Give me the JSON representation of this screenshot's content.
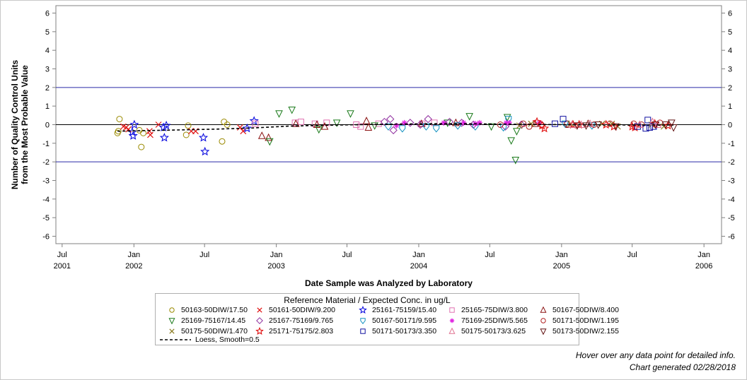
{
  "chart_data": {
    "type": "scatter",
    "ylabel_lines": [
      "Number of Quality Control Units",
      "from the Most Probable Value"
    ],
    "xlabel": "Date Sample was Analyzed by Laboratory",
    "ylim": [
      -6.4,
      6.4
    ],
    "yticks": [
      -6,
      -5,
      -4,
      -3,
      -2,
      -1,
      0,
      1,
      2,
      3,
      4,
      5,
      6
    ],
    "ytick_labels": [
      "-6",
      "-5",
      "-4",
      "-3",
      "-2",
      "-1",
      "0",
      "1",
      "2",
      "3",
      "4",
      "5",
      "6"
    ],
    "xlim": [
      "2001-06-15",
      "2006-02-15"
    ],
    "xticks": [
      {
        "date": "2001-07-01",
        "line1": "Jul",
        "line2": "2001"
      },
      {
        "date": "2002-01-01",
        "line1": "Jan",
        "line2": "2002"
      },
      {
        "date": "2002-07-01",
        "line1": "Jul",
        "line2": ""
      },
      {
        "date": "2003-01-01",
        "line1": "Jan",
        "line2": "2003"
      },
      {
        "date": "2003-07-01",
        "line1": "Jul",
        "line2": ""
      },
      {
        "date": "2004-01-01",
        "line1": "Jan",
        "line2": "2004"
      },
      {
        "date": "2004-07-01",
        "line1": "Jul",
        "line2": ""
      },
      {
        "date": "2005-01-01",
        "line1": "Jan",
        "line2": "2005"
      },
      {
        "date": "2005-07-01",
        "line1": "Jul",
        "line2": ""
      },
      {
        "date": "2006-01-01",
        "line1": "Jan",
        "line2": "2006"
      }
    ],
    "reference_lines": [
      {
        "y": 2,
        "color": "#2a2aa8"
      },
      {
        "y": 0,
        "color": "#000000"
      },
      {
        "y": -2,
        "color": "#2a2aa8"
      }
    ],
    "grid": false,
    "legend_position": "bottom",
    "legend_title": "Reference Material / Expected Conc. in ug/L",
    "series": [
      {
        "name": "50163-50DIW/17.50",
        "marker": "circle",
        "color": "#9a8a00",
        "points": [
          [
            "2001-11-20",
            -0.45
          ],
          [
            "2001-11-25",
            0.3
          ],
          [
            "2001-11-22",
            -0.35
          ],
          [
            "2002-01-15",
            -0.3
          ],
          [
            "2002-01-20",
            -1.2
          ],
          [
            "2002-01-25",
            -0.45
          ],
          [
            "2002-05-15",
            -0.55
          ],
          [
            "2002-05-20",
            -0.05
          ],
          [
            "2002-08-20",
            0.15
          ],
          [
            "2002-08-15",
            -0.9
          ],
          [
            "2002-08-28",
            0.0
          ]
        ]
      },
      {
        "name": "50161-50DIW/9.200",
        "marker": "x",
        "color": "#e01010",
        "points": [
          [
            "2001-12-05",
            -0.1
          ],
          [
            "2001-12-12",
            -0.15
          ],
          [
            "2001-12-18",
            -0.25
          ],
          [
            "2002-02-12",
            -0.55
          ],
          [
            "2002-02-10",
            -0.35
          ],
          [
            "2002-03-05",
            0.0
          ],
          [
            "2002-05-28",
            -0.35
          ],
          [
            "2002-06-08",
            -0.35
          ],
          [
            "2002-09-30",
            -0.15
          ],
          [
            "2002-10-08",
            -0.35
          ]
        ]
      },
      {
        "name": "25161-75159/15.40",
        "marker": "star",
        "color": "#1010e0",
        "points": [
          [
            "2001-12-28",
            -0.4
          ],
          [
            "2002-01-02",
            0.0
          ],
          [
            "2001-12-30",
            -0.6
          ],
          [
            "2002-03-20",
            -0.7
          ],
          [
            "2002-03-25",
            -0.05
          ],
          [
            "2002-03-18",
            -0.15
          ],
          [
            "2002-06-28",
            -0.7
          ],
          [
            "2002-07-02",
            -1.45
          ],
          [
            "2002-10-18",
            -0.2
          ],
          [
            "2002-11-05",
            0.2
          ]
        ]
      },
      {
        "name": "25165-75DIW/3.800",
        "marker": "square",
        "color": "#e070b0",
        "points": [
          [
            "2002-11-08",
            0.05
          ],
          [
            "2003-02-18",
            0.1
          ],
          [
            "2003-03-05",
            0.15
          ],
          [
            "2003-04-10",
            0.05
          ],
          [
            "2003-05-10",
            0.1
          ],
          [
            "2003-07-25",
            0.0
          ],
          [
            "2003-08-05",
            -0.1
          ],
          [
            "2003-09-20",
            0.05
          ],
          [
            "2004-01-10",
            0.05
          ],
          [
            "2004-02-10",
            0.1
          ]
        ]
      },
      {
        "name": "50167-50DIW/8.400",
        "marker": "triangle",
        "color": "#8a1010",
        "points": [
          [
            "2002-11-25",
            -0.6
          ],
          [
            "2002-12-12",
            -0.7
          ],
          [
            "2003-02-20",
            0.05
          ],
          [
            "2003-04-15",
            0.0
          ],
          [
            "2003-05-05",
            -0.1
          ],
          [
            "2003-08-20",
            0.2
          ],
          [
            "2003-08-25",
            -0.15
          ],
          [
            "2004-01-08",
            0.05
          ],
          [
            "2004-04-05",
            0.1
          ],
          [
            "2004-10-25",
            0.05
          ],
          [
            "2005-01-20",
            0.0
          ],
          [
            "2005-03-10",
            0.05
          ]
        ]
      },
      {
        "name": "25169-75167/14.45",
        "marker": "triangle-down",
        "color": "#1a7a1a",
        "points": [
          [
            "2002-12-15",
            -0.9
          ],
          [
            "2003-01-08",
            0.6
          ],
          [
            "2003-02-10",
            0.8
          ],
          [
            "2003-04-20",
            -0.25
          ],
          [
            "2003-06-05",
            0.1
          ],
          [
            "2003-07-10",
            0.6
          ],
          [
            "2003-09-10",
            -0.05
          ],
          [
            "2004-03-15",
            0.1
          ],
          [
            "2004-05-10",
            0.45
          ],
          [
            "2004-07-05",
            -0.1
          ],
          [
            "2004-08-15",
            0.4
          ],
          [
            "2004-08-25",
            -0.85
          ],
          [
            "2004-09-05",
            -1.9
          ],
          [
            "2004-09-08",
            -0.35
          ]
        ]
      },
      {
        "name": "25167-75169/9.765",
        "marker": "diamond",
        "color": "#9030a0",
        "points": [
          [
            "2003-10-05",
            0.15
          ],
          [
            "2003-10-20",
            0.3
          ],
          [
            "2003-10-28",
            -0.3
          ],
          [
            "2003-12-10",
            0.1
          ],
          [
            "2004-01-05",
            0.0
          ],
          [
            "2004-01-25",
            0.3
          ],
          [
            "2004-03-20",
            0.15
          ],
          [
            "2004-04-20",
            0.1
          ],
          [
            "2004-05-20",
            0.0
          ],
          [
            "2004-08-10",
            -0.1
          ],
          [
            "2004-09-20",
            0.0
          ]
        ]
      },
      {
        "name": "50167-50171/9.595",
        "marker": "shield",
        "color": "#1090c0",
        "points": [
          [
            "2003-10-15",
            -0.1
          ],
          [
            "2003-11-20",
            -0.2
          ],
          [
            "2004-01-20",
            -0.1
          ],
          [
            "2004-02-15",
            -0.2
          ],
          [
            "2004-04-10",
            -0.05
          ],
          [
            "2004-05-25",
            -0.1
          ],
          [
            "2004-08-05",
            -0.15
          ],
          [
            "2004-08-18",
            0.3
          ],
          [
            "2005-01-10",
            0.05
          ],
          [
            "2005-03-20",
            -0.05
          ]
        ]
      },
      {
        "name": "75169-25DIW/5.565",
        "marker": "asterisk",
        "color": "#e020e0",
        "points": [
          [
            "2003-11-05",
            -0.05
          ],
          [
            "2003-11-25",
            0.1
          ],
          [
            "2004-03-05",
            0.1
          ],
          [
            "2004-04-25",
            0.1
          ],
          [
            "2004-05-25",
            0.05
          ],
          [
            "2004-06-05",
            0.1
          ],
          [
            "2004-08-12",
            0.1
          ],
          [
            "2004-08-20",
            0.1
          ],
          [
            "2004-11-05",
            0.1
          ]
        ]
      },
      {
        "name": "50171-50DIW/1.195",
        "marker": "circle",
        "color": "#b02020",
        "points": [
          [
            "2004-07-28",
            0.0
          ],
          [
            "2004-09-25",
            0.05
          ],
          [
            "2004-10-10",
            -0.1
          ],
          [
            "2004-11-10",
            0.0
          ],
          [
            "2005-01-15",
            0.05
          ],
          [
            "2005-03-25",
            0.0
          ],
          [
            "2005-05-05",
            0.05
          ],
          [
            "2005-07-05",
            0.05
          ],
          [
            "2005-07-25",
            0.0
          ],
          [
            "2005-09-10",
            0.1
          ]
        ]
      },
      {
        "name": "50175-50DIW/1.470",
        "marker": "x",
        "color": "#8a7a20",
        "points": [
          [
            "2004-09-15",
            -0.05
          ],
          [
            "2004-10-15",
            0.05
          ],
          [
            "2005-01-25",
            0.05
          ],
          [
            "2005-04-15",
            0.05
          ],
          [
            "2005-05-10",
            0.05
          ],
          [
            "2005-05-25",
            -0.1
          ],
          [
            "2005-08-20",
            0.0
          ],
          [
            "2005-09-20",
            -0.1
          ]
        ]
      },
      {
        "name": "25171-75175/2.803",
        "marker": "star",
        "color": "#e01010",
        "points": [
          [
            "2004-10-30",
            0.15
          ],
          [
            "2004-11-12",
            -0.05
          ],
          [
            "2004-11-18",
            -0.2
          ],
          [
            "2005-01-30",
            0.0
          ],
          [
            "2005-02-15",
            0.0
          ],
          [
            "2005-04-25",
            0.0
          ],
          [
            "2005-05-15",
            -0.1
          ],
          [
            "2005-07-01",
            -0.1
          ],
          [
            "2005-07-08",
            -0.15
          ],
          [
            "2005-08-28",
            0.05
          ],
          [
            "2005-10-01",
            -0.05
          ]
        ]
      },
      {
        "name": "50171-50173/3.350",
        "marker": "square",
        "color": "#1010a0",
        "points": [
          [
            "2004-12-15",
            0.05
          ],
          [
            "2005-01-05",
            0.3
          ],
          [
            "2005-07-15",
            -0.1
          ],
          [
            "2005-08-05",
            -0.2
          ],
          [
            "2005-08-10",
            0.25
          ],
          [
            "2005-08-15",
            -0.15
          ],
          [
            "2005-08-25",
            -0.1
          ]
        ]
      },
      {
        "name": "50175-50173/3.625",
        "marker": "triangle",
        "color": "#e07090",
        "points": [
          [
            "2005-01-28",
            0.0
          ],
          [
            "2005-02-20",
            0.0
          ],
          [
            "2005-03-15",
            0.05
          ],
          [
            "2005-07-20",
            0.0
          ],
          [
            "2005-08-22",
            0.15
          ],
          [
            "2005-09-05",
            0.0
          ]
        ]
      },
      {
        "name": "50173-50DIW/2.155",
        "marker": "triangle-down",
        "color": "#601010",
        "points": [
          [
            "2005-02-10",
            -0.05
          ],
          [
            "2005-03-05",
            -0.05
          ],
          [
            "2005-04-05",
            0.0
          ],
          [
            "2005-05-20",
            -0.1
          ],
          [
            "2005-08-30",
            0.0
          ],
          [
            "2005-09-25",
            0.0
          ],
          [
            "2005-10-10",
            0.1
          ],
          [
            "2005-10-15",
            -0.15
          ]
        ]
      }
    ],
    "loess": {
      "name": "Loess, Smooth=0.5",
      "points": [
        [
          "2001-11-20",
          -0.35
        ],
        [
          "2002-02-01",
          -0.32
        ],
        [
          "2002-05-01",
          -0.28
        ],
        [
          "2002-08-01",
          -0.24
        ],
        [
          "2002-11-01",
          -0.18
        ],
        [
          "2003-02-01",
          -0.08
        ],
        [
          "2003-05-01",
          -0.03
        ],
        [
          "2003-08-01",
          0.0
        ],
        [
          "2003-11-01",
          0.03
        ],
        [
          "2004-02-01",
          0.05
        ],
        [
          "2004-05-01",
          0.05
        ],
        [
          "2004-08-01",
          0.03
        ],
        [
          "2004-11-01",
          0.01
        ],
        [
          "2005-02-01",
          0.0
        ],
        [
          "2005-05-01",
          -0.01
        ],
        [
          "2005-08-01",
          -0.02
        ],
        [
          "2005-10-15",
          -0.02
        ]
      ]
    }
  },
  "footnotes": {
    "hover_hint": "Hover over any data point for detailed info.",
    "generated": "Chart generated 02/28/2018"
  }
}
